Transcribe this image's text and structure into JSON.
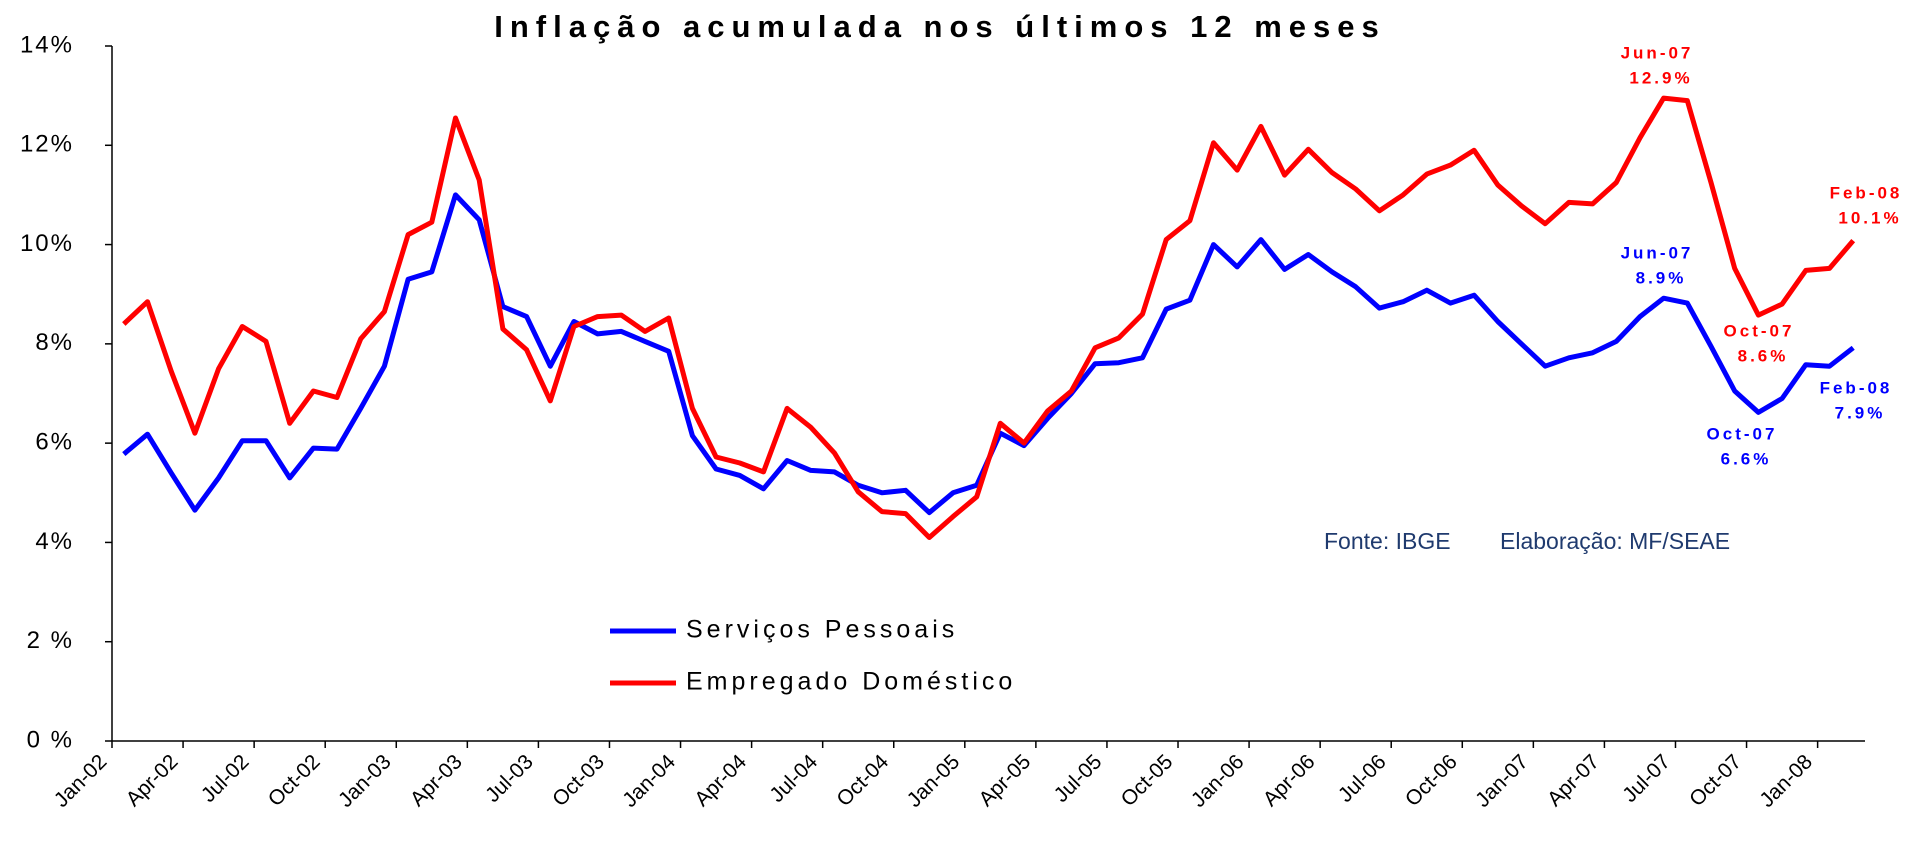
{
  "chart_data": {
    "type": "line",
    "title": "Inflação acumulada nos últimos 12 meses",
    "categories": [
      "Jan-02",
      null,
      null,
      "Apr-02",
      null,
      null,
      "Jul-02",
      null,
      null,
      "Oct-02",
      null,
      null,
      "Jan-03",
      null,
      null,
      "Apr-03",
      null,
      null,
      "Jul-03",
      null,
      null,
      "Oct-03",
      null,
      null,
      "Jan-04",
      null,
      null,
      "Apr-04",
      null,
      null,
      "Jul-04",
      null,
      null,
      "Oct-04",
      null,
      null,
      "Jan-05",
      null,
      null,
      "Apr-05",
      null,
      null,
      "Jul-05",
      null,
      null,
      "Oct-05",
      null,
      null,
      "Jan-06",
      null,
      null,
      "Apr-06",
      null,
      null,
      "Jul-06",
      null,
      null,
      "Oct-06",
      null,
      null,
      "Jan-07",
      null,
      null,
      "Apr-07",
      null,
      null,
      "Jul-07",
      null,
      null,
      "Oct-07",
      null,
      null,
      "Jan-08",
      null
    ],
    "series": [
      {
        "name": "Serviços Pessoais",
        "color": "#0000ff",
        "values": [
          5.78,
          6.18,
          5.4,
          4.65,
          5.3,
          6.05,
          6.05,
          5.3,
          5.9,
          5.88,
          6.7,
          7.55,
          9.3,
          9.45,
          11.0,
          10.5,
          8.75,
          8.55,
          7.55,
          8.45,
          8.2,
          8.25,
          8.05,
          7.85,
          6.15,
          5.48,
          5.35,
          5.08,
          5.65,
          5.45,
          5.42,
          5.15,
          5.0,
          5.05,
          4.6,
          5.0,
          5.15,
          6.2,
          5.95,
          6.5,
          7.0,
          7.6,
          7.62,
          7.72,
          8.7,
          8.88,
          10.0,
          9.55,
          10.1,
          9.5,
          9.8,
          9.45,
          9.15,
          8.72,
          8.85,
          9.08,
          8.82,
          8.98,
          8.45,
          8.0,
          7.55,
          7.72,
          7.82,
          8.05,
          8.55,
          8.92,
          8.82,
          7.95,
          7.05,
          6.62,
          6.9,
          7.58,
          7.55,
          7.92
        ]
      },
      {
        "name": "Empregado Doméstico",
        "color": "#ff0000",
        "values": [
          8.4,
          8.85,
          7.45,
          6.2,
          7.5,
          8.35,
          8.05,
          6.4,
          7.05,
          6.92,
          8.1,
          8.65,
          10.2,
          10.45,
          12.55,
          11.3,
          8.3,
          7.88,
          6.85,
          8.35,
          8.55,
          8.58,
          8.25,
          8.52,
          6.7,
          5.72,
          5.6,
          5.42,
          6.7,
          6.32,
          5.8,
          5.02,
          4.62,
          4.58,
          4.1,
          4.52,
          4.92,
          6.4,
          6.0,
          6.65,
          7.05,
          7.92,
          8.12,
          8.6,
          10.1,
          10.48,
          12.05,
          11.5,
          12.38,
          11.4,
          11.92,
          11.45,
          11.12,
          10.68,
          11.0,
          11.42,
          11.6,
          11.9,
          11.2,
          10.78,
          10.42,
          10.85,
          10.82,
          11.25,
          12.15,
          12.95,
          12.9,
          11.25,
          9.52,
          8.58,
          8.8,
          9.48,
          9.52,
          10.08
        ]
      }
    ],
    "ylim": [
      0,
      14
    ],
    "yticks": [
      {
        "value": 0,
        "label": "0 %"
      },
      {
        "value": 2,
        "label": "2 %"
      },
      {
        "value": 4,
        "label": "4%"
      },
      {
        "value": 6,
        "label": "6%"
      },
      {
        "value": 8,
        "label": "8%"
      },
      {
        "value": 10,
        "label": "10%"
      },
      {
        "value": 12,
        "label": "12%"
      },
      {
        "value": 14,
        "label": "14%"
      }
    ],
    "grid": false,
    "source": "Fonte: IBGE",
    "credit": "Elaboração: MF/SEAE",
    "annotations": [
      {
        "text": "Jun-07",
        "value_label": "12.9%",
        "color": "#ff0000"
      },
      {
        "text": "Feb-08",
        "value_label": "10.1%",
        "color": "#ff0000"
      },
      {
        "text": "Jun-07",
        "value_label": "8.9%",
        "color": "#0000ff"
      },
      {
        "text": "Oct-07",
        "value_label": "8.6%",
        "color": "#ff0000"
      },
      {
        "text": "Feb-08",
        "value_label": "7.9%",
        "color": "#0000ff"
      },
      {
        "text": "Oct-07",
        "value_label": "6.6%",
        "color": "#0000ff"
      }
    ]
  }
}
